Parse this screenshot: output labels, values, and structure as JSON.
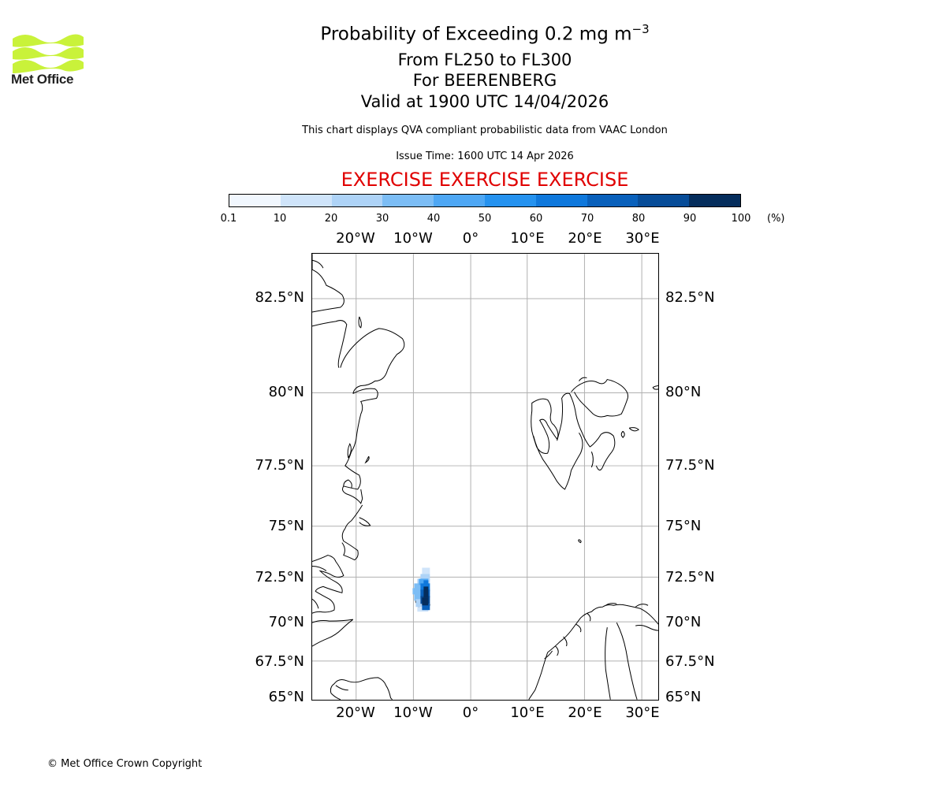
{
  "logo": {
    "text": "Met Office",
    "color": "#c9f23a"
  },
  "title": {
    "line1_main": "Probability of Exceeding 0.2 mg m",
    "line1_sup": "−3",
    "line2": "From FL250 to FL300",
    "line3": "For BEERENBERG",
    "line4": "Valid at 1900 UTC 14/04/2026"
  },
  "subtitle": "This chart displays QVA compliant probabilistic data from VAAC London",
  "issue_time": "Issue Time: 1600 UTC 14 Apr 2026",
  "exercise_banner": "EXERCISE EXERCISE EXERCISE",
  "colorbar": {
    "ticks": [
      "0.1",
      "10",
      "20",
      "30",
      "40",
      "50",
      "60",
      "70",
      "80",
      "90",
      "100"
    ],
    "unit": "(%)",
    "colors": [
      "#f1f7fe",
      "#cfe4fa",
      "#aed3f7",
      "#7cbdf5",
      "#4ea7f4",
      "#2592ef",
      "#0f78dc",
      "#0960bb",
      "#074c98",
      "#052d5c"
    ]
  },
  "map": {
    "lon_labels": [
      "20°W",
      "10°W",
      "0°",
      "10°E",
      "20°E",
      "30°E"
    ],
    "lat_labels": [
      "82.5°N",
      "80°N",
      "77.5°N",
      "75°N",
      "72.5°N",
      "70°N",
      "67.5°N",
      "65°N"
    ],
    "grid_color": "#b0b0b0"
  },
  "copyright": "© Met Office Crown Copyright"
}
